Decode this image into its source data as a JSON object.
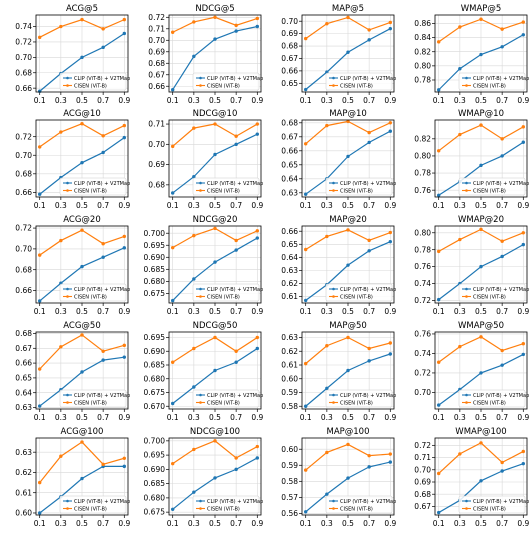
{
  "colors": {
    "blue": "#1f77b4",
    "orange": "#ff7f0e",
    "frame": "#000000",
    "grid": "#d8d8d8"
  },
  "chart_data": [
    {
      "type": "line",
      "title": "ACG@5",
      "x": [
        0.1,
        0.3,
        0.5,
        0.7,
        0.9
      ],
      "xticks": [
        "0.1",
        "0.3",
        "0.5",
        "0.7",
        "0.9"
      ],
      "ylim": [
        0.655,
        0.755
      ],
      "yticks": [
        "0.66",
        "0.68",
        "0.70",
        "0.72",
        "0.74"
      ],
      "grid": true,
      "legend": "bottom-right",
      "series": [
        {
          "name": "CLIP (ViT-B) + V2TMap",
          "color": "#1f77b4",
          "values": [
            0.656,
            0.679,
            0.7,
            0.713,
            0.731
          ]
        },
        {
          "name": "CISEN (ViT-B)",
          "color": "#ff7f0e",
          "values": [
            0.726,
            0.74,
            0.749,
            0.737,
            0.749
          ]
        }
      ]
    },
    {
      "type": "line",
      "title": "NDCG@5",
      "x": [
        0.1,
        0.3,
        0.5,
        0.7,
        0.9
      ],
      "xticks": [
        "0.1",
        "0.3",
        "0.5",
        "0.7",
        "0.9"
      ],
      "ylim": [
        0.655,
        0.722
      ],
      "yticks": [
        "0.66",
        "0.67",
        "0.68",
        "0.69",
        "0.70",
        "0.71",
        "0.72"
      ],
      "grid": true,
      "legend": "bottom-right",
      "series": [
        {
          "name": "CLIP (ViT-B) + V2TMap",
          "color": "#1f77b4",
          "values": [
            0.657,
            0.686,
            0.701,
            0.708,
            0.712
          ]
        },
        {
          "name": "CISEN (ViT-B)",
          "color": "#ff7f0e",
          "values": [
            0.707,
            0.716,
            0.72,
            0.713,
            0.719
          ]
        }
      ]
    },
    {
      "type": "line",
      "title": "MAP@5",
      "x": [
        0.1,
        0.3,
        0.5,
        0.7,
        0.9
      ],
      "xticks": [
        "0.1",
        "0.3",
        "0.5",
        "0.7",
        "0.9"
      ],
      "ylim": [
        0.643,
        0.705
      ],
      "yticks": [
        "0.65",
        "0.66",
        "0.67",
        "0.68",
        "0.69",
        "0.70"
      ],
      "grid": true,
      "legend": "bottom-right",
      "series": [
        {
          "name": "CLIP (ViT-B) + V2TMap",
          "color": "#1f77b4",
          "values": [
            0.645,
            0.659,
            0.675,
            0.685,
            0.694
          ]
        },
        {
          "name": "CISEN (ViT-B)",
          "color": "#ff7f0e",
          "values": [
            0.686,
            0.698,
            0.703,
            0.693,
            0.699
          ]
        }
      ]
    },
    {
      "type": "line",
      "title": "WMAP@5",
      "x": [
        0.1,
        0.3,
        0.5,
        0.7,
        0.9
      ],
      "xticks": [
        "0.1",
        "0.3",
        "0.5",
        "0.7",
        "0.9"
      ],
      "ylim": [
        0.763,
        0.872
      ],
      "yticks": [
        "0.78",
        "0.80",
        "0.82",
        "0.84",
        "0.86"
      ],
      "grid": true,
      "legend": "bottom-right",
      "series": [
        {
          "name": "CLIP (ViT-B) + V2TMap",
          "color": "#1f77b4",
          "values": [
            0.766,
            0.796,
            0.816,
            0.827,
            0.844
          ]
        },
        {
          "name": "CISEN (ViT-B)",
          "color": "#ff7f0e",
          "values": [
            0.834,
            0.855,
            0.866,
            0.852,
            0.862
          ]
        }
      ]
    },
    {
      "type": "line",
      "title": "ACG@10",
      "x": [
        0.1,
        0.3,
        0.5,
        0.7,
        0.9
      ],
      "xticks": [
        "0.1",
        "0.3",
        "0.5",
        "0.7",
        "0.9"
      ],
      "ylim": [
        0.655,
        0.738
      ],
      "yticks": [
        "0.66",
        "0.68",
        "0.70",
        "0.72"
      ],
      "grid": true,
      "legend": "bottom-right",
      "series": [
        {
          "name": "CLIP (ViT-B) + V2TMap",
          "color": "#1f77b4",
          "values": [
            0.658,
            0.676,
            0.692,
            0.703,
            0.719
          ]
        },
        {
          "name": "CISEN (ViT-B)",
          "color": "#ff7f0e",
          "values": [
            0.709,
            0.725,
            0.734,
            0.721,
            0.732
          ]
        }
      ]
    },
    {
      "type": "line",
      "title": "NDCG@10",
      "x": [
        0.1,
        0.3,
        0.5,
        0.7,
        0.9
      ],
      "xticks": [
        "0.1",
        "0.3",
        "0.5",
        "0.7",
        "0.9"
      ],
      "ylim": [
        0.674,
        0.712
      ],
      "yticks": [
        "0.68",
        "0.69",
        "0.70",
        "0.71"
      ],
      "grid": true,
      "legend": "bottom-right",
      "series": [
        {
          "name": "CLIP (ViT-B) + V2TMap",
          "color": "#1f77b4",
          "values": [
            0.676,
            0.684,
            0.695,
            0.7,
            0.705
          ]
        },
        {
          "name": "CISEN (ViT-B)",
          "color": "#ff7f0e",
          "values": [
            0.699,
            0.708,
            0.71,
            0.704,
            0.71
          ]
        }
      ]
    },
    {
      "type": "line",
      "title": "MAP@10",
      "x": [
        0.1,
        0.3,
        0.5,
        0.7,
        0.9
      ],
      "xticks": [
        "0.1",
        "0.3",
        "0.5",
        "0.7",
        "0.9"
      ],
      "ylim": [
        0.627,
        0.682
      ],
      "yticks": [
        "0.63",
        "0.64",
        "0.65",
        "0.66",
        "0.67",
        "0.68"
      ],
      "grid": true,
      "legend": "bottom-right",
      "series": [
        {
          "name": "CLIP (ViT-B) + V2TMap",
          "color": "#1f77b4",
          "values": [
            0.629,
            0.64,
            0.656,
            0.666,
            0.674
          ]
        },
        {
          "name": "CISEN (ViT-B)",
          "color": "#ff7f0e",
          "values": [
            0.665,
            0.678,
            0.681,
            0.673,
            0.68
          ]
        }
      ]
    },
    {
      "type": "line",
      "title": "WMAP@10",
      "x": [
        0.1,
        0.3,
        0.5,
        0.7,
        0.9
      ],
      "xticks": [
        "0.1",
        "0.3",
        "0.5",
        "0.7",
        "0.9"
      ],
      "ylim": [
        0.752,
        0.842
      ],
      "yticks": [
        "0.76",
        "0.78",
        "0.80",
        "0.82"
      ],
      "grid": true,
      "legend": "bottom-right",
      "series": [
        {
          "name": "CLIP (ViT-B) + V2TMap",
          "color": "#1f77b4",
          "values": [
            0.754,
            0.77,
            0.789,
            0.8,
            0.816
          ]
        },
        {
          "name": "CISEN (ViT-B)",
          "color": "#ff7f0e",
          "values": [
            0.806,
            0.825,
            0.836,
            0.82,
            0.834
          ]
        }
      ]
    },
    {
      "type": "line",
      "title": "ACG@20",
      "x": [
        0.1,
        0.3,
        0.5,
        0.7,
        0.9
      ],
      "xticks": [
        "0.1",
        "0.3",
        "0.5",
        "0.7",
        "0.9"
      ],
      "ylim": [
        0.648,
        0.722
      ],
      "yticks": [
        "0.66",
        "0.68",
        "0.70",
        "0.72"
      ],
      "grid": true,
      "legend": "bottom-right",
      "series": [
        {
          "name": "CLIP (ViT-B) + V2TMap",
          "color": "#1f77b4",
          "values": [
            0.65,
            0.667,
            0.683,
            0.692,
            0.701
          ]
        },
        {
          "name": "CISEN (ViT-B)",
          "color": "#ff7f0e",
          "values": [
            0.694,
            0.708,
            0.718,
            0.705,
            0.712
          ]
        }
      ]
    },
    {
      "type": "line",
      "title": "NDCG@20",
      "x": [
        0.1,
        0.3,
        0.5,
        0.7,
        0.9
      ],
      "xticks": [
        "0.1",
        "0.3",
        "0.5",
        "0.7",
        "0.9"
      ],
      "ylim": [
        0.671,
        0.703
      ],
      "yticks": [
        "0.675",
        "0.680",
        "0.685",
        "0.690",
        "0.695",
        "0.700"
      ],
      "grid": true,
      "legend": "bottom-right",
      "series": [
        {
          "name": "CLIP (ViT-B) + V2TMap",
          "color": "#1f77b4",
          "values": [
            0.672,
            0.681,
            0.688,
            0.693,
            0.698
          ]
        },
        {
          "name": "CISEN (ViT-B)",
          "color": "#ff7f0e",
          "values": [
            0.694,
            0.699,
            0.702,
            0.697,
            0.701
          ]
        }
      ]
    },
    {
      "type": "line",
      "title": "MAP@20",
      "x": [
        0.1,
        0.3,
        0.5,
        0.7,
        0.9
      ],
      "xticks": [
        "0.1",
        "0.3",
        "0.5",
        "0.7",
        "0.9"
      ],
      "ylim": [
        0.605,
        0.664
      ],
      "yticks": [
        "0.61",
        "0.62",
        "0.63",
        "0.64",
        "0.65",
        "0.66"
      ],
      "grid": true,
      "legend": "bottom-right",
      "series": [
        {
          "name": "CLIP (ViT-B) + V2TMap",
          "color": "#1f77b4",
          "values": [
            0.607,
            0.619,
            0.634,
            0.645,
            0.652
          ]
        },
        {
          "name": "CISEN (ViT-B)",
          "color": "#ff7f0e",
          "values": [
            0.646,
            0.656,
            0.661,
            0.653,
            0.659
          ]
        }
      ]
    },
    {
      "type": "line",
      "title": "WMAP@20",
      "x": [
        0.1,
        0.3,
        0.5,
        0.7,
        0.9
      ],
      "xticks": [
        "0.1",
        "0.3",
        "0.5",
        "0.7",
        "0.9"
      ],
      "ylim": [
        0.717,
        0.808
      ],
      "yticks": [
        "0.72",
        "0.74",
        "0.76",
        "0.78",
        "0.80"
      ],
      "grid": true,
      "legend": "bottom-right",
      "series": [
        {
          "name": "CLIP (ViT-B) + V2TMap",
          "color": "#1f77b4",
          "values": [
            0.721,
            0.74,
            0.76,
            0.772,
            0.786
          ]
        },
        {
          "name": "CISEN (ViT-B)",
          "color": "#ff7f0e",
          "values": [
            0.778,
            0.792,
            0.804,
            0.79,
            0.8
          ]
        }
      ]
    },
    {
      "type": "line",
      "title": "ACG@50",
      "x": [
        0.1,
        0.3,
        0.5,
        0.7,
        0.9
      ],
      "xticks": [
        "0.1",
        "0.3",
        "0.5",
        "0.7",
        "0.9"
      ],
      "ylim": [
        0.629,
        0.681
      ],
      "yticks": [
        "0.63",
        "0.64",
        "0.65",
        "0.66",
        "0.67",
        "0.68"
      ],
      "grid": true,
      "legend": "bottom-right",
      "series": [
        {
          "name": "CLIP (ViT-B) + V2TMap",
          "color": "#1f77b4",
          "values": [
            0.631,
            0.642,
            0.654,
            0.662,
            0.664
          ]
        },
        {
          "name": "CISEN (ViT-B)",
          "color": "#ff7f0e",
          "values": [
            0.656,
            0.671,
            0.679,
            0.668,
            0.672
          ]
        }
      ]
    },
    {
      "type": "line",
      "title": "NDCG@50",
      "x": [
        0.1,
        0.3,
        0.5,
        0.7,
        0.9
      ],
      "xticks": [
        "0.1",
        "0.3",
        "0.5",
        "0.7",
        "0.9"
      ],
      "ylim": [
        0.669,
        0.697
      ],
      "yticks": [
        "0.670",
        "0.675",
        "0.680",
        "0.685",
        "0.690",
        "0.695"
      ],
      "grid": true,
      "legend": "bottom-right",
      "series": [
        {
          "name": "CLIP (ViT-B) + V2TMap",
          "color": "#1f77b4",
          "values": [
            0.671,
            0.677,
            0.683,
            0.686,
            0.691
          ]
        },
        {
          "name": "CISEN (ViT-B)",
          "color": "#ff7f0e",
          "values": [
            0.686,
            0.691,
            0.695,
            0.69,
            0.695
          ]
        }
      ]
    },
    {
      "type": "line",
      "title": "MAP@50",
      "x": [
        0.1,
        0.3,
        0.5,
        0.7,
        0.9
      ],
      "xticks": [
        "0.1",
        "0.3",
        "0.5",
        "0.7",
        "0.9"
      ],
      "ylim": [
        0.578,
        0.634
      ],
      "yticks": [
        "0.58",
        "0.59",
        "0.60",
        "0.61",
        "0.62",
        "0.63"
      ],
      "grid": true,
      "legend": "bottom-right",
      "series": [
        {
          "name": "CLIP (ViT-B) + V2TMap",
          "color": "#1f77b4",
          "values": [
            0.58,
            0.593,
            0.606,
            0.613,
            0.618
          ]
        },
        {
          "name": "CISEN (ViT-B)",
          "color": "#ff7f0e",
          "values": [
            0.611,
            0.624,
            0.63,
            0.622,
            0.626
          ]
        }
      ]
    },
    {
      "type": "line",
      "title": "WMAP@50",
      "x": [
        0.1,
        0.3,
        0.5,
        0.7,
        0.9
      ],
      "xticks": [
        "0.1",
        "0.3",
        "0.5",
        "0.7",
        "0.9"
      ],
      "ylim": [
        0.683,
        0.762
      ],
      "yticks": [
        "0.70",
        "0.72",
        "0.74",
        "0.76"
      ],
      "grid": true,
      "legend": "bottom-right",
      "series": [
        {
          "name": "CLIP (ViT-B) + V2TMap",
          "color": "#1f77b4",
          "values": [
            0.687,
            0.703,
            0.72,
            0.728,
            0.739
          ]
        },
        {
          "name": "CISEN (ViT-B)",
          "color": "#ff7f0e",
          "values": [
            0.731,
            0.747,
            0.757,
            0.743,
            0.75
          ]
        }
      ]
    },
    {
      "type": "line",
      "title": "ACG@100",
      "x": [
        0.1,
        0.3,
        0.5,
        0.7,
        0.9
      ],
      "xticks": [
        "0.1",
        "0.3",
        "0.5",
        "0.7",
        "0.9"
      ],
      "ylim": [
        0.599,
        0.637
      ],
      "yticks": [
        "0.60",
        "0.61",
        "0.62",
        "0.63"
      ],
      "grid": true,
      "legend": "bottom-right",
      "series": [
        {
          "name": "CLIP (ViT-B) + V2TMap",
          "color": "#1f77b4",
          "values": [
            0.6,
            0.608,
            0.617,
            0.623,
            0.623
          ]
        },
        {
          "name": "CISEN (ViT-B)",
          "color": "#ff7f0e",
          "values": [
            0.615,
            0.628,
            0.635,
            0.624,
            0.627
          ]
        }
      ]
    },
    {
      "type": "line",
      "title": "NDCG@100",
      "x": [
        0.1,
        0.3,
        0.5,
        0.7,
        0.9
      ],
      "xticks": [
        "0.1",
        "0.3",
        "0.5",
        "0.7",
        "0.9"
      ],
      "ylim": [
        0.674,
        0.701
      ],
      "yticks": [
        "0.675",
        "0.680",
        "0.685",
        "0.690",
        "0.695",
        "0.700"
      ],
      "grid": true,
      "legend": "bottom-right",
      "series": [
        {
          "name": "CLIP (ViT-B) + V2TMap",
          "color": "#1f77b4",
          "values": [
            0.676,
            0.682,
            0.687,
            0.69,
            0.694
          ]
        },
        {
          "name": "CISEN (ViT-B)",
          "color": "#ff7f0e",
          "values": [
            0.692,
            0.697,
            0.7,
            0.694,
            0.698
          ]
        }
      ]
    },
    {
      "type": "line",
      "title": "MAP@100",
      "x": [
        0.1,
        0.3,
        0.5,
        0.7,
        0.9
      ],
      "xticks": [
        "0.1",
        "0.3",
        "0.5",
        "0.7",
        "0.9"
      ],
      "ylim": [
        0.559,
        0.607
      ],
      "yticks": [
        "0.56",
        "0.57",
        "0.58",
        "0.59",
        "0.60"
      ],
      "grid": true,
      "legend": "bottom-right",
      "series": [
        {
          "name": "CLIP (ViT-B) + V2TMap",
          "color": "#1f77b4",
          "values": [
            0.561,
            0.572,
            0.582,
            0.589,
            0.592
          ]
        },
        {
          "name": "CISEN (ViT-B)",
          "color": "#ff7f0e",
          "values": [
            0.587,
            0.598,
            0.603,
            0.596,
            0.597
          ]
        }
      ]
    },
    {
      "type": "line",
      "title": "WMAP@100",
      "x": [
        0.1,
        0.3,
        0.5,
        0.7,
        0.9
      ],
      "xticks": [
        "0.1",
        "0.3",
        "0.5",
        "0.7",
        "0.9"
      ],
      "ylim": [
        0.663,
        0.726
      ],
      "yticks": [
        "0.67",
        "0.68",
        "0.69",
        "0.70",
        "0.71",
        "0.72"
      ],
      "grid": true,
      "legend": "bottom-right",
      "series": [
        {
          "name": "CLIP (ViT-B) + V2TMap",
          "color": "#1f77b4",
          "values": [
            0.665,
            0.675,
            0.691,
            0.699,
            0.705
          ]
        },
        {
          "name": "CISEN (ViT-B)",
          "color": "#ff7f0e",
          "values": [
            0.697,
            0.713,
            0.722,
            0.706,
            0.715
          ]
        }
      ]
    }
  ]
}
